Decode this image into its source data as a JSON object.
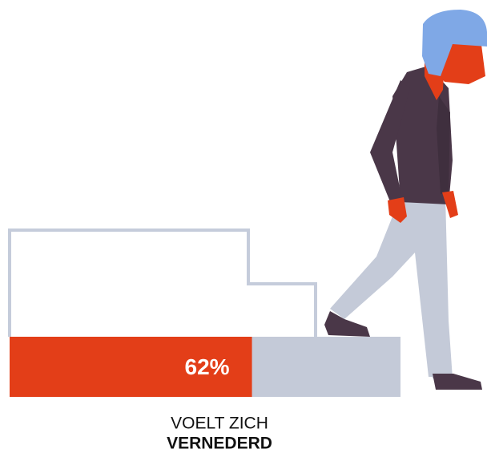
{
  "chart_data": {
    "type": "progress",
    "values": [
      62
    ],
    "value_labels": [
      "62%"
    ],
    "xlim": [
      0,
      100
    ],
    "color": "#e33e18",
    "track_color": "#c4cad8",
    "category_lines": [
      "VOELT ZICH",
      "VERNEDERD"
    ]
  }
}
